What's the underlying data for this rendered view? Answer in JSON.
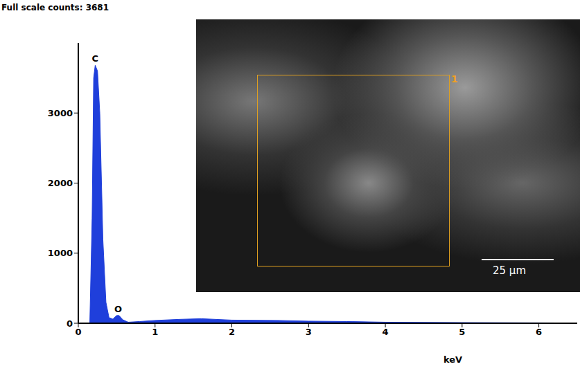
{
  "chart_data": {
    "type": "area",
    "title": "Full scale counts: 3681",
    "x_label": "keV",
    "x": [
      0.15,
      0.18,
      0.2,
      0.22,
      0.25,
      0.28,
      0.32,
      0.36,
      0.4,
      0.45,
      0.5,
      0.53,
      0.58,
      0.65,
      0.8,
      1.0,
      1.3,
      1.6,
      2.0,
      2.6,
      3.0,
      3.5,
      4.0,
      5.0,
      6.2
    ],
    "values": [
      0,
      1500,
      3500,
      3681,
      3600,
      3000,
      1200,
      300,
      80,
      60,
      110,
      110,
      50,
      15,
      25,
      40,
      55,
      65,
      45,
      40,
      30,
      25,
      15,
      10,
      5
    ],
    "color": "#1f3fdb",
    "xlim": [
      0,
      6.5
    ],
    "xticks": [
      0,
      1,
      2,
      3,
      4,
      5,
      6
    ],
    "ylim": [
      0,
      4000
    ],
    "yticks": [
      0,
      1000,
      2000,
      3000
    ],
    "grid": false,
    "annotations": [
      {
        "text": "C",
        "x": 0.22,
        "y": 3681
      },
      {
        "text": "O",
        "x": 0.52,
        "y": 110
      }
    ],
    "inset": {
      "region_label": "1",
      "scale_bar": "25 µm"
    }
  }
}
